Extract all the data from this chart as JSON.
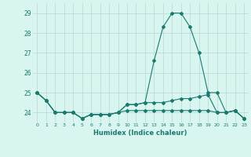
{
  "xlabel": "Humidex (Indice chaleur)",
  "x": [
    0,
    1,
    2,
    3,
    4,
    5,
    6,
    7,
    8,
    9,
    10,
    11,
    12,
    13,
    14,
    15,
    16,
    17,
    18,
    19,
    20,
    21,
    22,
    23
  ],
  "line1": [
    25.0,
    24.6,
    24.0,
    24.0,
    24.0,
    23.7,
    23.9,
    23.9,
    23.9,
    24.0,
    24.4,
    24.4,
    24.5,
    26.6,
    28.3,
    29.0,
    29.0,
    28.3,
    27.0,
    25.0,
    25.0,
    24.0,
    24.1,
    23.7
  ],
  "line2": [
    25.0,
    24.6,
    24.0,
    24.0,
    24.0,
    23.7,
    23.9,
    23.9,
    23.9,
    24.0,
    24.4,
    24.4,
    24.5,
    24.5,
    24.5,
    24.6,
    24.7,
    24.7,
    24.8,
    24.9,
    24.0,
    24.0,
    24.1,
    23.7
  ],
  "line3": [
    25.0,
    24.6,
    24.0,
    24.0,
    24.0,
    23.7,
    23.9,
    23.9,
    23.9,
    24.0,
    24.1,
    24.1,
    24.1,
    24.1,
    24.1,
    24.1,
    24.1,
    24.1,
    24.1,
    24.1,
    24.0,
    24.0,
    24.1,
    23.7
  ],
  "line_color": "#1a7a6e",
  "bg_color": "#d8f5f0",
  "grid_color": "#b8d8d4",
  "ylim": [
    23.5,
    29.5
  ],
  "yticks": [
    24,
    25,
    26,
    27,
    28,
    29
  ],
  "xlim": [
    -0.5,
    23.5
  ]
}
